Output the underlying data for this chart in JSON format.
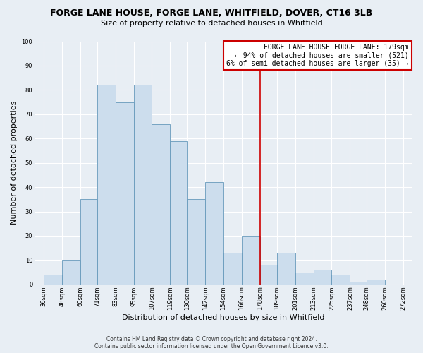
{
  "title": "FORGE LANE HOUSE, FORGE LANE, WHITFIELD, DOVER, CT16 3LB",
  "subtitle": "Size of property relative to detached houses in Whitfield",
  "xlabel": "Distribution of detached houses by size in Whitfield",
  "ylabel": "Number of detached properties",
  "footer_line1": "Contains HM Land Registry data © Crown copyright and database right 2024.",
  "footer_line2": "Contains public sector information licensed under the Open Government Licence v3.0.",
  "bar_edges": [
    36,
    48,
    60,
    71,
    83,
    95,
    107,
    119,
    130,
    142,
    154,
    166,
    178,
    189,
    201,
    213,
    225,
    237,
    248,
    260,
    272
  ],
  "bar_heights": [
    4,
    10,
    35,
    82,
    75,
    82,
    66,
    59,
    35,
    42,
    13,
    20,
    8,
    13,
    5,
    6,
    4,
    1,
    2,
    0,
    0
  ],
  "bar_color": "#ccdded",
  "bar_edgecolor": "#6699bb",
  "property_line_x": 178,
  "annotation_line1": "FORGE LANE HOUSE FORGE LANE: 179sqm",
  "annotation_line2": "← 94% of detached houses are smaller (521)",
  "annotation_line3": "6% of semi-detached houses are larger (35) →",
  "annotation_box_facecolor": "#ffffff",
  "annotation_box_edgecolor": "#cc0000",
  "vline_color": "#cc0000",
  "ylim": [
    0,
    100
  ],
  "xlim_min": 30,
  "xlim_max": 278,
  "tick_labels": [
    "36sqm",
    "48sqm",
    "60sqm",
    "71sqm",
    "83sqm",
    "95sqm",
    "107sqm",
    "119sqm",
    "130sqm",
    "142sqm",
    "154sqm",
    "166sqm",
    "178sqm",
    "189sqm",
    "201sqm",
    "213sqm",
    "225sqm",
    "237sqm",
    "248sqm",
    "260sqm",
    "272sqm"
  ],
  "tick_positions": [
    36,
    48,
    60,
    71,
    83,
    95,
    107,
    119,
    130,
    142,
    154,
    166,
    178,
    189,
    201,
    213,
    225,
    237,
    248,
    260,
    272
  ],
  "background_color": "#e8eef4",
  "plot_bg_color": "#e8eef4",
  "grid_color": "#ffffff",
  "title_fontsize": 9,
  "subtitle_fontsize": 8,
  "ylabel_fontsize": 8,
  "xlabel_fontsize": 8,
  "tick_fontsize": 6,
  "footer_fontsize": 5.5
}
